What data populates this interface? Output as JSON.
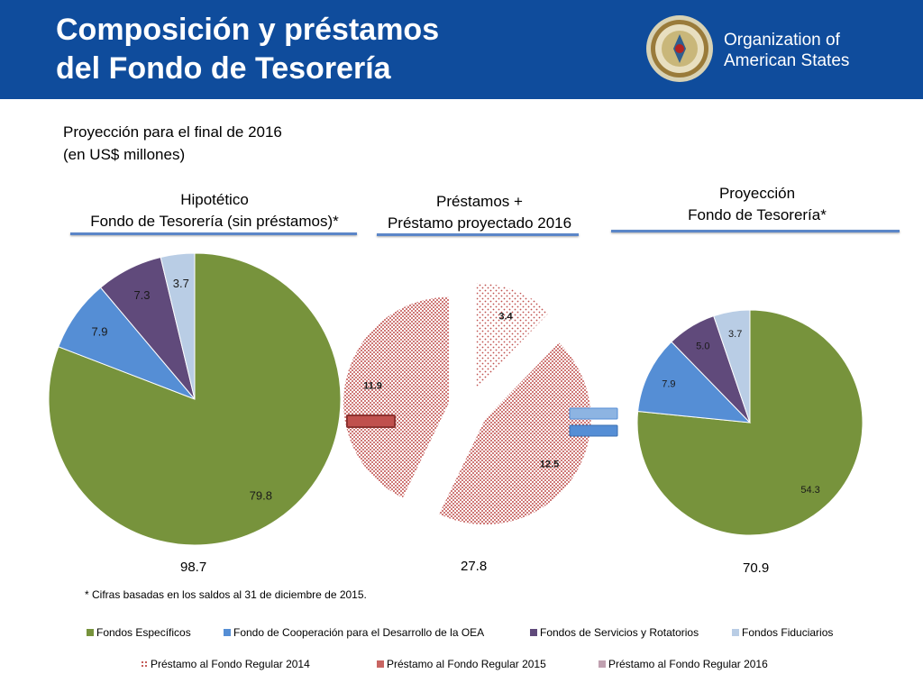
{
  "header": {
    "title_line1": "Composición y préstamos",
    "title_line2": "del Fondo de Tesorería",
    "org_line1": "Organization of",
    "org_line2": "American States",
    "background": "#0f4c9c"
  },
  "subtitle": {
    "line1": "Proyección para el final de 2016",
    "line2": "(en US$ millones)"
  },
  "sections": {
    "left": {
      "line1": "Hipotético",
      "line2": "Fondo de Tesorería (sin préstamos)*"
    },
    "middle": {
      "line1": "Préstamos +",
      "line2": "Préstamo proyectado 2016"
    },
    "right": {
      "line1": "Proyección",
      "line2": "Fondo de Tesorería*"
    }
  },
  "operators": {
    "minus_color": "#c0504d",
    "equals_color": "#558ed5"
  },
  "footnote": "* Cifras basadas en los saldos al 31 de diciembre de 2015.",
  "legend": {
    "row1": [
      {
        "label": "Fondos Específicos",
        "color": "#77933c",
        "pattern": "solid"
      },
      {
        "label": "Fondo de Cooperación para el Desarrollo de la OEA",
        "color": "#558ed5",
        "pattern": "solid"
      },
      {
        "label": "Fondos de Servicios y Rotatorios",
        "color": "#604a7b",
        "pattern": "solid"
      },
      {
        "label": "Fondos Fiduciarios",
        "color": "#b9cde5",
        "pattern": "solid"
      }
    ],
    "row2": [
      {
        "label": "Préstamo al Fondo Regular 2014",
        "color": "#c0504d",
        "pattern": "sparse-dots"
      },
      {
        "label": "Préstamo al Fondo Regular 2015",
        "color": "#c0504d",
        "pattern": "dense-dots"
      },
      {
        "label": "Préstamo al Fondo Regular 2016",
        "color": "#c0a0b0",
        "pattern": "solid"
      }
    ]
  },
  "chart_data": [
    {
      "type": "pie",
      "title": "Hipotético Fondo de Tesorería (sin préstamos)*",
      "categories": [
        "Fondos Específicos",
        "Fondo de Cooperación para el Desarrollo de la OEA",
        "Fondos de Servicios y Rotatorios",
        "Fondos Fiduciarios"
      ],
      "values": [
        79.8,
        7.9,
        7.3,
        3.7
      ],
      "colors": [
        "#77933c",
        "#558ed5",
        "#604a7b",
        "#b9cde5"
      ],
      "total": "98.7"
    },
    {
      "type": "pie",
      "title": "Préstamos + Préstamo proyectado 2016",
      "categories": [
        "Préstamo al Fondo Regular 2014",
        "Préstamo al Fondo Regular 2015",
        "Préstamo al Fondo Regular 2015"
      ],
      "values": [
        3.4,
        12.5,
        11.9
      ],
      "colors": [
        "#c0504d",
        "#c0504d",
        "#c0504d"
      ],
      "patterns": [
        "sparse-dots",
        "dense-dots",
        "dense-dots"
      ],
      "total": "27.8"
    },
    {
      "type": "pie",
      "title": "Proyección Fondo de Tesorería*",
      "categories": [
        "Fondos Específicos",
        "Fondo de Cooperación para el Desarrollo de la OEA",
        "Fondos de Servicios y Rotatorios",
        "Fondos Fiduciarios"
      ],
      "values": [
        54.3,
        7.9,
        5.0,
        3.7
      ],
      "colors": [
        "#77933c",
        "#558ed5",
        "#604a7b",
        "#b9cde5"
      ],
      "total": "70.9"
    }
  ]
}
